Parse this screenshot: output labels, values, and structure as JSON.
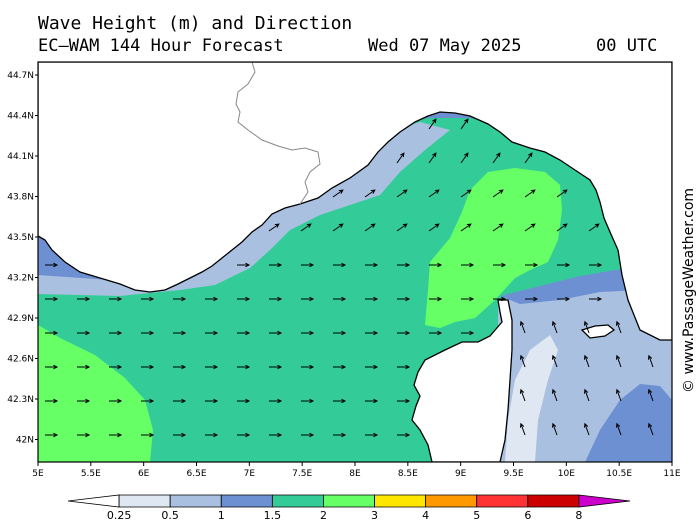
{
  "title": {
    "line1": "Wave Height (m) and Direction",
    "line2": "EC—WAM 144 Hour Forecast",
    "date": "Wed 07 May 2025",
    "time": "00 UTC"
  },
  "credit": "© www.PassageWeather.com",
  "map": {
    "lat_labels": [
      "44.7N",
      "44.4N",
      "44.1N",
      "43.8N",
      "43.5N",
      "43.2N",
      "42.9N",
      "42.6N",
      "42.3N",
      "42N"
    ],
    "lon_labels": [
      "5E",
      "5.5E",
      "6E",
      "6.5E",
      "7E",
      "7.5E",
      "8E",
      "8.5E",
      "9E",
      "9.5E",
      "10E",
      "10.5E",
      "11E"
    ],
    "dominant_direction": "east",
    "colors": {
      "land": "#ffffff",
      "band_0_25_0_5": "#dfe7f3",
      "band_0_5_1": "#a9c0e0",
      "band_1_1_5": "#6d90d2",
      "band_1_5_2": "#33cc99",
      "band_2_3": "#66ff66"
    }
  },
  "colorbar": {
    "labels": [
      "0.25",
      "0.5",
      "1",
      "1.5",
      "2",
      "3",
      "4",
      "5",
      "6",
      "8"
    ],
    "colors": [
      "#ffffff",
      "#dfe7f3",
      "#a9c0e0",
      "#6d90d2",
      "#33cc99",
      "#66ff66",
      "#ffe600",
      "#ff9900",
      "#ff3333",
      "#cc0000",
      "#cc00cc"
    ]
  }
}
